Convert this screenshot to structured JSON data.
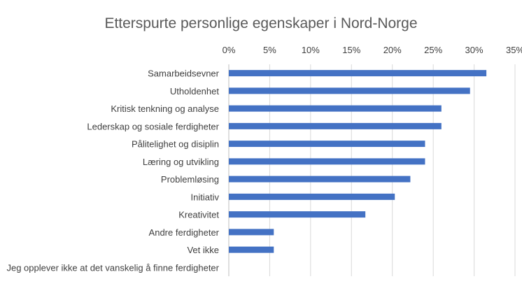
{
  "chart_data": {
    "type": "bar",
    "orientation": "horizontal",
    "title": "Etterspurte personlige egenskaper i Nord-Norge",
    "categories": [
      "Samarbeidsevner",
      "Utholdenhet",
      "Kritisk tenkning og analyse",
      "Lederskap og sosiale ferdigheter",
      "Pålitelighet og disiplin",
      "Læring og utvikling",
      "Problemløsing",
      "Initiativ",
      "Kreativitet",
      "Andre ferdigheter",
      "Vet ikke",
      "Jeg opplever ikke at det vanskelig å finne ferdigheter"
    ],
    "values": [
      31.5,
      29.5,
      26,
      26,
      24,
      24,
      22.2,
      20.3,
      16.7,
      5.5,
      5.5,
      0
    ],
    "ticks": [
      "0%",
      "5%",
      "10%",
      "15%",
      "20%",
      "25%",
      "30%",
      "35%"
    ],
    "xlim": [
      0,
      35
    ],
    "axis_position": "top",
    "grid": true,
    "bar_color": "#4472c4"
  }
}
